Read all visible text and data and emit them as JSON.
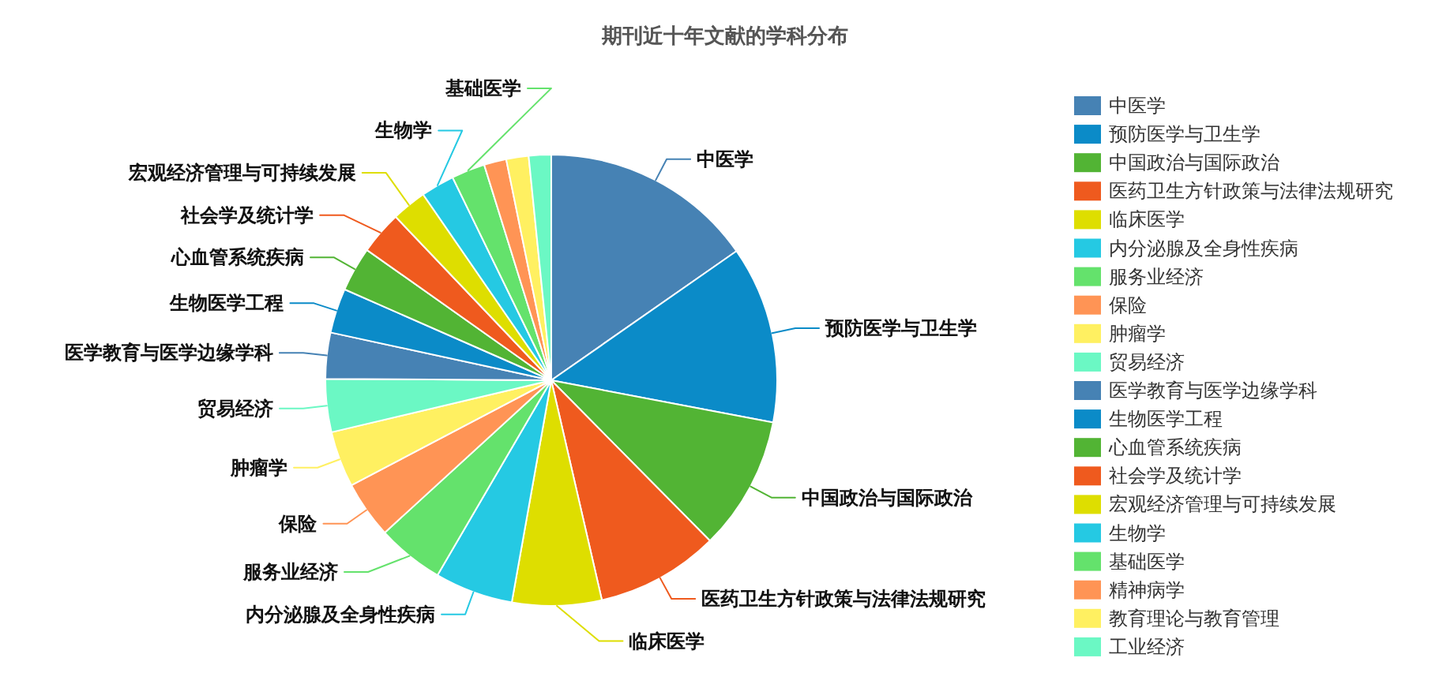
{
  "chart_data": {
    "type": "pie",
    "title": "期刊近十年文献的学科分布",
    "categories": [
      "中医学",
      "预防医学与卫生学",
      "中国政治与国际政治",
      "医药卫生方针政策与法律法规研究",
      "临床医学",
      "内分泌腺及全身性疾病",
      "服务业经济",
      "保险",
      "肿瘤学",
      "贸易经济",
      "医学教育与医学边缘学科",
      "生物医学工程",
      "心血管系统疾病",
      "社会学及统计学",
      "宏观经济管理与可持续发展",
      "生物学",
      "基础医学",
      "精神病学",
      "教育理论与教育管理",
      "工业经济"
    ],
    "values": [
      15.3,
      12.7,
      9.6,
      8.8,
      6.4,
      5.6,
      4.8,
      4.1,
      4.0,
      3.8,
      3.3,
      3.2,
      3.2,
      3.1,
      2.5,
      2.4,
      2.4,
      1.6,
      1.6,
      1.6
    ],
    "colors": [
      "#4682b4",
      "#0b8bc8",
      "#52b434",
      "#ef5a1e",
      "#dede00",
      "#25c9e3",
      "#64e26c",
      "#ff9455",
      "#fff061",
      "#6bf8c4",
      "#4682b4",
      "#0b8bc8",
      "#52b434",
      "#ef5a1e",
      "#dede00",
      "#25c9e3",
      "#64e26c",
      "#ff9455",
      "#fff061",
      "#6bf8c4"
    ],
    "legend": "right"
  }
}
